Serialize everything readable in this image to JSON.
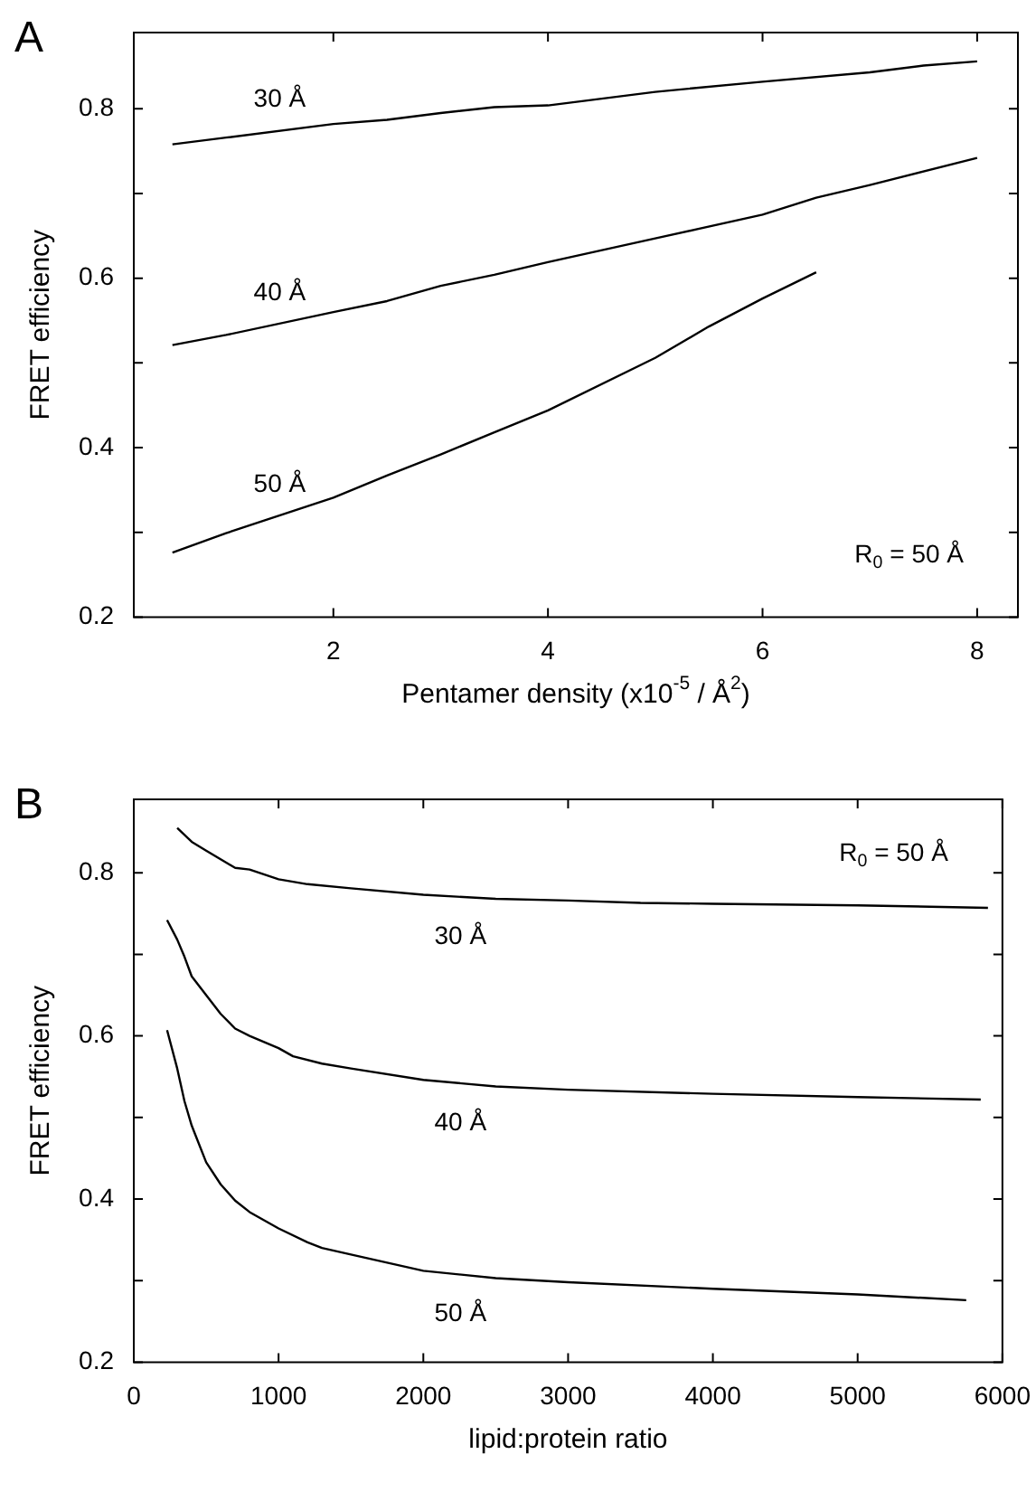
{
  "chart_data": [
    {
      "type": "line",
      "title": "A",
      "xlabel": "Pentamer density (x10$^{-5}$ / Å$^{2}$)",
      "ylabel": "FRET efficiency",
      "xlim": [
        0.14,
        8.38
      ],
      "xticks": [
        2,
        4,
        6,
        8
      ],
      "ylim": [
        0.2,
        0.89
      ],
      "yticks": [
        0.2,
        {
          "value": 0.3,
          "label": null
        },
        0.4,
        {
          "value": 0.5,
          "label": null
        },
        0.6,
        {
          "value": 0.7,
          "label": null
        },
        0.8
      ],
      "grid": false,
      "line_style": "solid",
      "annotations": [
        "R$_{0}$ = 50 Å"
      ],
      "series": [
        {
          "name": "30 Å",
          "color": "#000000",
          "x": [
            0.5,
            1,
            2,
            2.5,
            3,
            3.5,
            4,
            5,
            6,
            7,
            7.5,
            8
          ],
          "values": [
            0.758,
            0.766,
            0.782,
            0.787,
            0.795,
            0.802,
            0.804,
            0.82,
            0.832,
            0.843,
            0.851,
            0.856
          ]
        },
        {
          "name": "40 Å",
          "color": "#000000",
          "x": [
            0.5,
            1,
            2,
            2.5,
            3,
            3.5,
            4,
            5,
            6,
            6.5,
            7,
            8
          ],
          "values": [
            0.521,
            0.533,
            0.56,
            0.573,
            0.591,
            0.604,
            0.619,
            0.647,
            0.675,
            0.695,
            0.71,
            0.742
          ]
        },
        {
          "name": "50 Å",
          "color": "#000000",
          "x": [
            0.5,
            1,
            2,
            2.5,
            3,
            3.5,
            4,
            5,
            5.5,
            6,
            6.5
          ],
          "values": [
            0.276,
            0.299,
            0.341,
            0.367,
            0.392,
            0.418,
            0.444,
            0.506,
            0.543,
            0.576,
            0.607
          ]
        }
      ]
    },
    {
      "type": "line",
      "title": "B",
      "xlabel": "lipid:protein ratio",
      "ylabel": "FRET efficiency",
      "xlim": [
        0,
        6000
      ],
      "xticks": [
        0,
        1000,
        2000,
        3000,
        4000,
        5000,
        6000
      ],
      "ylim": [
        0.2,
        0.89
      ],
      "yticks": [
        0.2,
        {
          "value": 0.3,
          "label": null
        },
        0.4,
        {
          "value": 0.5,
          "label": null
        },
        0.6,
        {
          "value": 0.7,
          "label": null
        },
        0.8
      ],
      "grid": false,
      "line_style": "solid",
      "annotations": [
        "R$_{0}$ = 50 Å"
      ],
      "series": [
        {
          "name": "30 Å",
          "color": "#000000",
          "x": [
            300,
            400,
            500,
            700,
            800,
            1000,
            1200,
            1500,
            2000,
            2500,
            3000,
            3500,
            4000,
            5000,
            5900
          ],
          "values": [
            0.855,
            0.838,
            0.827,
            0.806,
            0.804,
            0.792,
            0.786,
            0.781,
            0.773,
            0.768,
            0.766,
            0.763,
            0.762,
            0.76,
            0.757
          ]
        },
        {
          "name": "40 Å",
          "color": "#000000",
          "x": [
            230,
            300,
            350,
            400,
            500,
            600,
            700,
            800,
            1000,
            1100,
            1300,
            1500,
            2000,
            2500,
            3000,
            4000,
            5000,
            5850
          ],
          "values": [
            0.742,
            0.718,
            0.697,
            0.673,
            0.65,
            0.627,
            0.609,
            0.6,
            0.585,
            0.575,
            0.566,
            0.56,
            0.546,
            0.538,
            0.534,
            0.529,
            0.525,
            0.522
          ]
        },
        {
          "name": "50 Å",
          "color": "#000000",
          "x": [
            230,
            300,
            350,
            400,
            500,
            600,
            700,
            800,
            1000,
            1200,
            1300,
            1500,
            2000,
            2500,
            3000,
            4000,
            5000,
            5750
          ],
          "values": [
            0.607,
            0.56,
            0.52,
            0.49,
            0.445,
            0.418,
            0.398,
            0.384,
            0.364,
            0.347,
            0.34,
            0.332,
            0.312,
            0.303,
            0.298,
            0.29,
            0.283,
            0.276
          ]
        }
      ]
    }
  ]
}
